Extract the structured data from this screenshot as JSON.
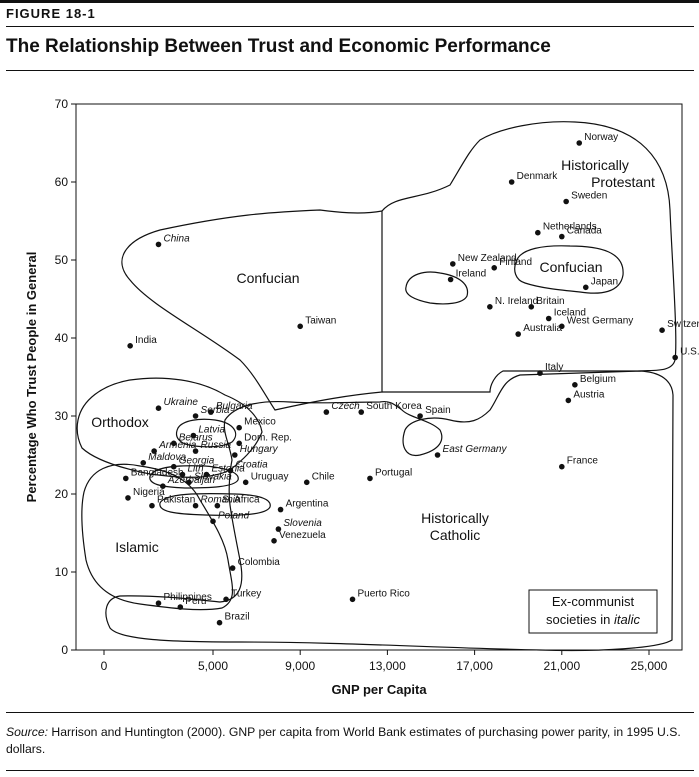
{
  "header": {
    "figure_label": "FIGURE 18-1",
    "title": "The Relationship Between Trust and Economic Performance"
  },
  "source": {
    "label": "Source:",
    "text": " Harrison and Huntington (2000). GNP per capita from World Bank estimates of purchasing power parity, in 1995 U.S. dollars."
  },
  "legend_box": {
    "line1": "Ex-communist",
    "line2_prefix": "societies in ",
    "line2_italic": "italic"
  },
  "chart_data": {
    "type": "scatter",
    "title": "The Relationship Between Trust and Economic Performance",
    "xlabel": "GNP per Capita",
    "ylabel": "Percentage Who Trust People in General",
    "xlim": [
      0,
      27000
    ],
    "ylim": [
      0,
      70
    ],
    "xticks": [
      0,
      5000,
      9000,
      13000,
      17000,
      21000,
      25000
    ],
    "xtick_labels": [
      "0",
      "5,000",
      "9,000",
      "13,000",
      "17,000",
      "21,000",
      "25,000"
    ],
    "yticks": [
      0,
      10,
      20,
      30,
      40,
      50,
      60,
      70
    ],
    "grid": false,
    "regions": [
      "Historically Protestant",
      "Confucian",
      "Confucian",
      "Orthodox",
      "Islamic",
      "Historically Catholic"
    ],
    "points": [
      {
        "label": "Norway",
        "x": 21800,
        "y": 65,
        "italic": false
      },
      {
        "label": "Denmark",
        "x": 18700,
        "y": 60,
        "italic": false
      },
      {
        "label": "Sweden",
        "x": 21200,
        "y": 57.5,
        "italic": false
      },
      {
        "label": "Netherlands",
        "x": 19900,
        "y": 53.5,
        "italic": false
      },
      {
        "label": "Canada",
        "x": 21000,
        "y": 53,
        "italic": false
      },
      {
        "label": "New Zealand",
        "x": 16000,
        "y": 49.5,
        "italic": false
      },
      {
        "label": "Finland",
        "x": 17900,
        "y": 49,
        "italic": false
      },
      {
        "label": "Ireland",
        "x": 15900,
        "y": 47.5,
        "italic": false
      },
      {
        "label": "Japan",
        "x": 22100,
        "y": 46.5,
        "italic": false
      },
      {
        "label": "N. Ireland",
        "x": 17700,
        "y": 44,
        "italic": false
      },
      {
        "label": "Britain",
        "x": 19600,
        "y": 44,
        "italic": false
      },
      {
        "label": "Iceland",
        "x": 20400,
        "y": 42.5,
        "italic": false
      },
      {
        "label": "West Germany",
        "x": 21000,
        "y": 41.5,
        "italic": false
      },
      {
        "label": "Australia",
        "x": 19000,
        "y": 40.5,
        "italic": false
      },
      {
        "label": "Switzerland",
        "x": 25600,
        "y": 41,
        "italic": false
      },
      {
        "label": "U.S.A.",
        "x": 26200,
        "y": 37.5,
        "italic": false
      },
      {
        "label": "China",
        "x": 2500,
        "y": 52,
        "italic": true
      },
      {
        "label": "Taiwan",
        "x": 9000,
        "y": 41.5,
        "italic": false
      },
      {
        "label": "India",
        "x": 1200,
        "y": 39,
        "italic": false
      },
      {
        "label": "Italy",
        "x": 20000,
        "y": 35.5,
        "italic": false
      },
      {
        "label": "Belgium",
        "x": 21600,
        "y": 34,
        "italic": false
      },
      {
        "label": "Austria",
        "x": 21300,
        "y": 32,
        "italic": false
      },
      {
        "label": "South Korea",
        "x": 11800,
        "y": 30.5,
        "italic": false
      },
      {
        "label": "Czech",
        "x": 10200,
        "y": 30.5,
        "italic": true
      },
      {
        "label": "Spain",
        "x": 14500,
        "y": 30,
        "italic": false
      },
      {
        "label": "East Germany",
        "x": 15300,
        "y": 25,
        "italic": true
      },
      {
        "label": "France",
        "x": 21000,
        "y": 23.5,
        "italic": false
      },
      {
        "label": "Portugal",
        "x": 12200,
        "y": 22,
        "italic": false
      },
      {
        "label": "Ukraine",
        "x": 2500,
        "y": 31,
        "italic": true
      },
      {
        "label": "Serbia",
        "x": 4200,
        "y": 30,
        "italic": true
      },
      {
        "label": "Bulgaria",
        "x": 4900,
        "y": 30.5,
        "italic": true
      },
      {
        "label": "Latvia",
        "x": 4100,
        "y": 27.5,
        "italic": true
      },
      {
        "label": "Mexico",
        "x": 6200,
        "y": 28.5,
        "italic": false
      },
      {
        "label": "Belarus",
        "x": 3200,
        "y": 26.5,
        "italic": true
      },
      {
        "label": "Russia",
        "x": 4200,
        "y": 25.5,
        "italic": true
      },
      {
        "label": "Dom. Rep.",
        "x": 6200,
        "y": 26.5,
        "italic": false
      },
      {
        "label": "Armenia",
        "x": 2300,
        "y": 25.5,
        "italic": true
      },
      {
        "label": "Hungary",
        "x": 6000,
        "y": 25,
        "italic": true
      },
      {
        "label": "Maldova",
        "x": 1800,
        "y": 24,
        "italic": true
      },
      {
        "label": "Georgia",
        "x": 3200,
        "y": 23.5,
        "italic": true
      },
      {
        "label": "Croatia",
        "x": 5800,
        "y": 23,
        "italic": true
      },
      {
        "label": "Bangladesh",
        "x": 1000,
        "y": 22,
        "italic": false
      },
      {
        "label": "Lith",
        "x": 3600,
        "y": 22.5,
        "italic": true
      },
      {
        "label": "Estonia",
        "x": 4700,
        "y": 22.5,
        "italic": true
      },
      {
        "label": "Azerbaijan",
        "x": 2700,
        "y": 21,
        "italic": true
      },
      {
        "label": "Slovakia",
        "x": 3900,
        "y": 21.5,
        "italic": true
      },
      {
        "label": "Uruguay",
        "x": 6500,
        "y": 21.5,
        "italic": false
      },
      {
        "label": "Chile",
        "x": 9300,
        "y": 21.5,
        "italic": false
      },
      {
        "label": "Nigeria",
        "x": 1100,
        "y": 19.5,
        "italic": false
      },
      {
        "label": "Romania",
        "x": 4200,
        "y": 18.5,
        "italic": true
      },
      {
        "label": "S. Africa",
        "x": 5200,
        "y": 18.5,
        "italic": false
      },
      {
        "label": "Argentina",
        "x": 8100,
        "y": 18,
        "italic": false
      },
      {
        "label": "Pakistan",
        "x": 2200,
        "y": 18.5,
        "italic": false
      },
      {
        "label": "Poland",
        "x": 5000,
        "y": 16.5,
        "italic": true
      },
      {
        "label": "Slovenia",
        "x": 8000,
        "y": 15.5,
        "italic": true
      },
      {
        "label": "Venezuela",
        "x": 7800,
        "y": 14,
        "italic": false
      },
      {
        "label": "Colombia",
        "x": 5900,
        "y": 10.5,
        "italic": false
      },
      {
        "label": "Turkey",
        "x": 5600,
        "y": 6.5,
        "italic": false
      },
      {
        "label": "Philippines",
        "x": 2500,
        "y": 6,
        "italic": false
      },
      {
        "label": "Peru",
        "x": 3500,
        "y": 5.5,
        "italic": false
      },
      {
        "label": "Brazil",
        "x": 5300,
        "y": 3.5,
        "italic": false
      },
      {
        "label": "Puerto Rico",
        "x": 11400,
        "y": 6.5,
        "italic": false
      }
    ]
  }
}
